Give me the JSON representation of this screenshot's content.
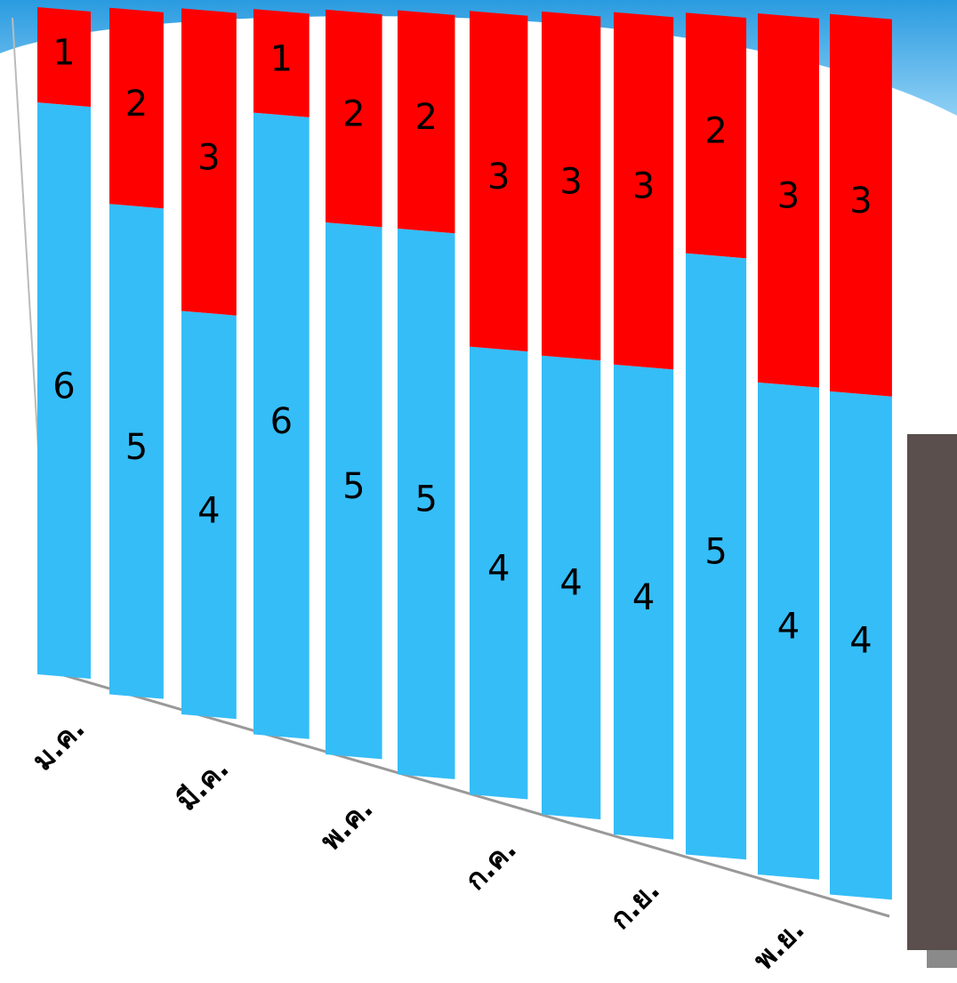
{
  "chart_data": {
    "type": "bar",
    "stacked": true,
    "categories": [
      "ม.ค.",
      null,
      "มี.ค.",
      null,
      "พ.ค.",
      null,
      "ก.ค.",
      null,
      "ก.ย.",
      null,
      "พ.ย.",
      null
    ],
    "series": [
      {
        "color": "#35bdf7",
        "values": [
          6,
          5,
          4,
          6,
          5,
          5,
          4,
          4,
          4,
          5,
          4,
          4
        ]
      },
      {
        "color": "#ff0000",
        "values": [
          1,
          2,
          3,
          1,
          2,
          2,
          3,
          3,
          3,
          2,
          3,
          3
        ]
      }
    ]
  }
}
